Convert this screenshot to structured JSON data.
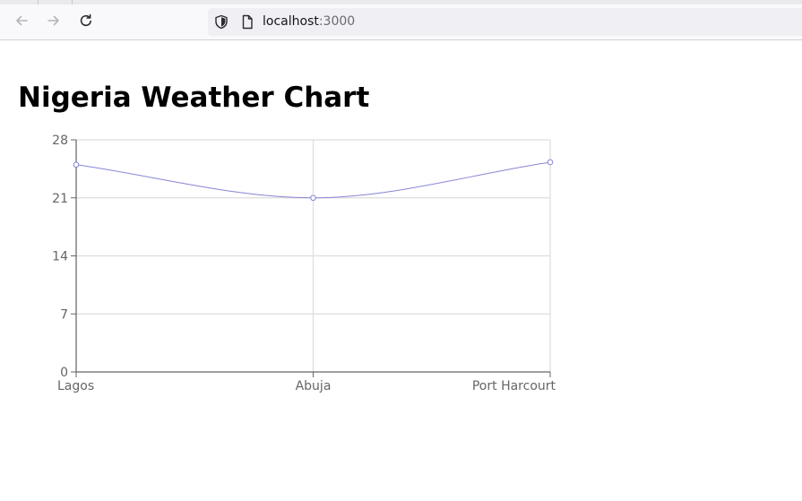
{
  "browser": {
    "url_host": "localhost",
    "url_port": ":3000",
    "icons": [
      "back-arrow-icon",
      "forward-arrow-icon",
      "reload-icon",
      "shield-icon",
      "page-icon"
    ]
  },
  "page": {
    "title": "Nigeria Weather Chart"
  },
  "chart_data": {
    "type": "line",
    "categories": [
      "Lagos",
      "Abuja",
      "Port Harcourt"
    ],
    "series": [
      {
        "values": [
          25,
          21,
          25.3
        ],
        "color": "#8884d8"
      }
    ],
    "yticks": [
      "0",
      "7",
      "14",
      "21",
      "28"
    ],
    "ylim": [
      0,
      28
    ],
    "grid": true,
    "legend": "none",
    "title": "",
    "xlabel": "",
    "ylabel": ""
  }
}
